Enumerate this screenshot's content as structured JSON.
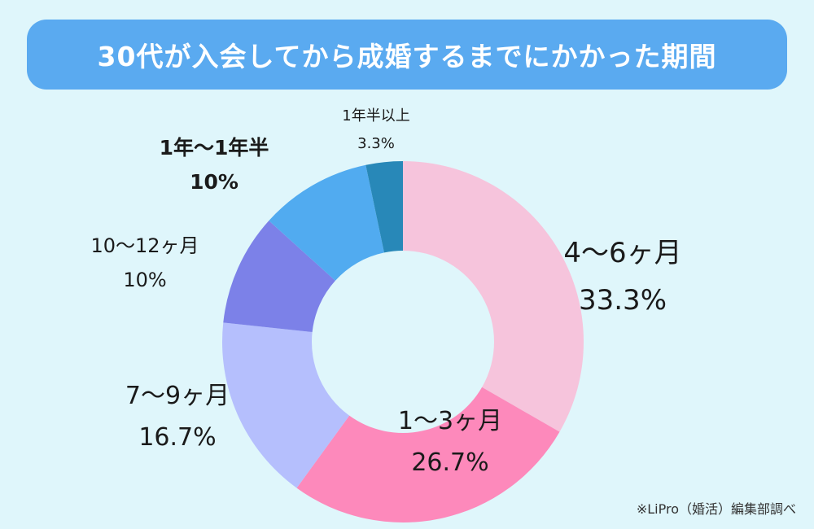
{
  "title": "30代が入会してから成婚するまでにかかった期間",
  "credit": "※LiPro（婚活）編集部調べ",
  "chart_data": {
    "type": "pie",
    "donut": true,
    "categories": [
      "4〜6ヶ月",
      "1〜3ヶ月",
      "7〜9ヶ月",
      "10〜12ヶ月",
      "1年〜1年半",
      "1年半以上"
    ],
    "values": [
      33.3,
      26.7,
      16.7,
      10,
      10,
      3.3
    ],
    "value_labels": [
      "33.3%",
      "26.7%",
      "16.7%",
      "10%",
      "10%",
      "3.3%"
    ],
    "colors": [
      "#f6c4dc",
      "#fd89bb",
      "#b5bffd",
      "#7c81e8",
      "#51abf0",
      "#2888b8"
    ],
    "start": "12 o'clock",
    "direction": "clockwise"
  }
}
